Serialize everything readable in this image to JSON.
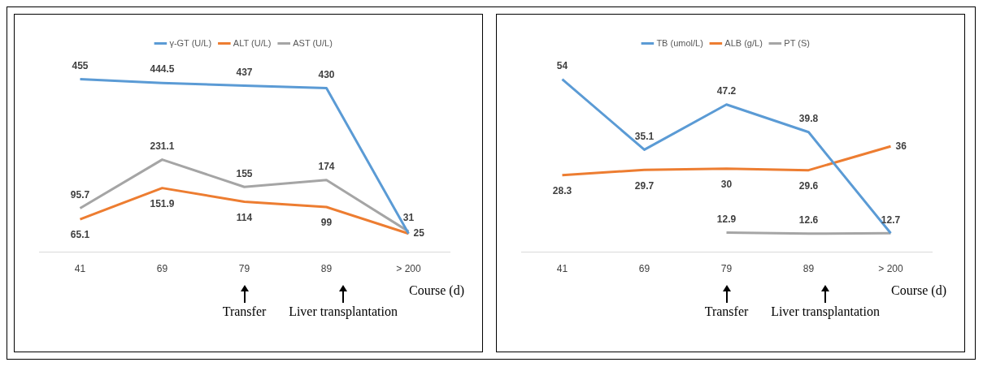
{
  "chart_data": [
    {
      "type": "line",
      "xlabel": "Course (d)",
      "categories": [
        "41",
        "69",
        "79",
        "89",
        "> 200"
      ],
      "legend": "top",
      "data_labels": true,
      "series": [
        {
          "name": "γ-GT (U/L)",
          "color": "#5b9bd5",
          "values": [
            455,
            444.5,
            437,
            430,
            25
          ],
          "value_labels": [
            "455",
            "444.5",
            "437",
            "430",
            null
          ]
        },
        {
          "name": "ALT (U/L)",
          "color": "#ed7d31",
          "values": [
            65.1,
            151.9,
            114,
            99,
            25
          ]
        },
        {
          "name": "AST (U/L)",
          "color": "#a5a5a5",
          "values": [
            95.7,
            231.1,
            155,
            174,
            31
          ]
        }
      ],
      "annotations": [
        "Transfer",
        "Liver transplantation"
      ]
    },
    {
      "type": "line",
      "xlabel": "Course (d)",
      "categories": [
        "41",
        "69",
        "79",
        "89",
        "> 200"
      ],
      "legend": "top",
      "data_labels": true,
      "series": [
        {
          "name": "TB (umol/L)",
          "color": "#5b9bd5",
          "values": [
            54,
            35.1,
            47.2,
            39.8,
            12.7
          ]
        },
        {
          "name": "ALB (g/L)",
          "color": "#ed7d31",
          "values": [
            28.3,
            29.7,
            30,
            29.6,
            36
          ]
        },
        {
          "name": "PT (S)",
          "color": "#a5a5a5",
          "values": [
            null,
            null,
            12.9,
            12.6,
            12.7
          ],
          "value_labels": [
            null,
            null,
            "12.9",
            "12.6",
            null
          ]
        }
      ],
      "annotations": [
        "Transfer",
        "Liver transplantation"
      ]
    }
  ]
}
